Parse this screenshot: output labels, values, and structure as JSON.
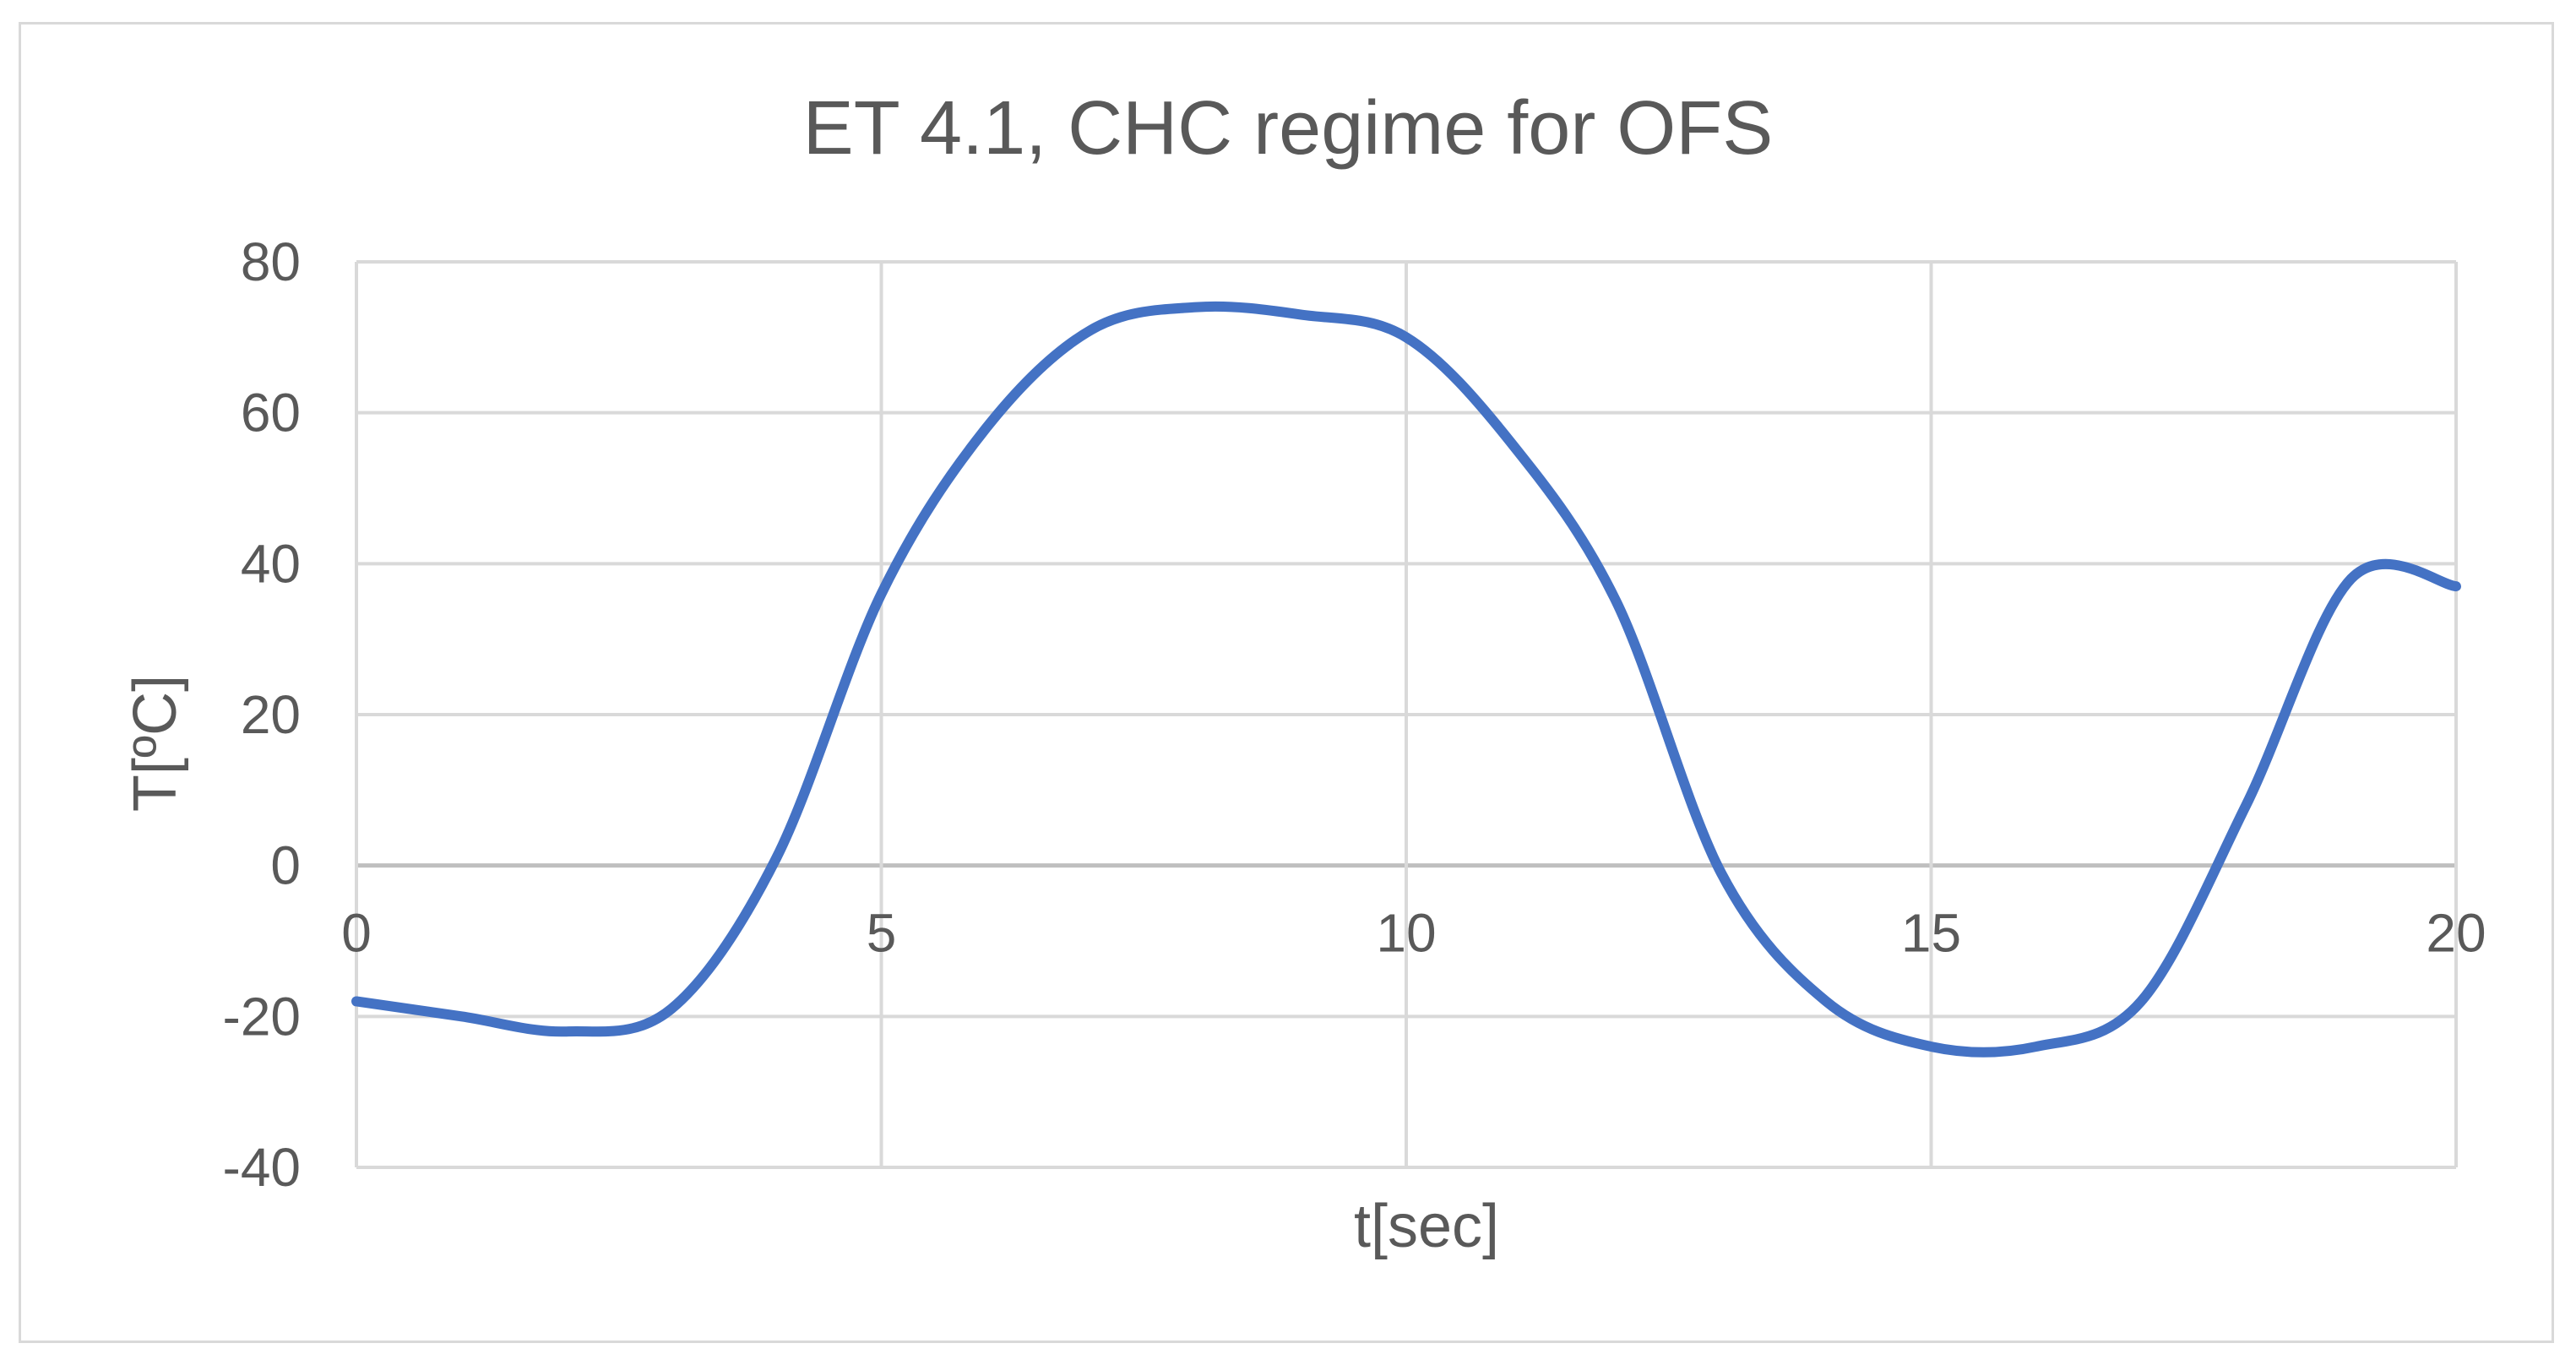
{
  "chart_data": {
    "type": "line",
    "title": "ET 4.1, CHC regime for OFS",
    "xlabel": "t[sec]",
    "ylabel": "T[ºC]",
    "xlim": [
      0,
      20
    ],
    "ylim": [
      -40,
      80
    ],
    "xticks": [
      0,
      5,
      10,
      15,
      20
    ],
    "yticks": [
      80,
      60,
      40,
      20,
      0,
      -20,
      -40
    ],
    "xtick_labels": [
      "0",
      "5",
      "10",
      "15",
      "20"
    ],
    "ytick_labels": [
      "80",
      "60",
      "40",
      "20",
      "0",
      "-20",
      "-40"
    ],
    "grid": true,
    "legend": "none",
    "series": [
      {
        "color": "#4472c4",
        "x": [
          0,
          1,
          2,
          3,
          4,
          5,
          6,
          7,
          8,
          9,
          10,
          11,
          12,
          13,
          14,
          15,
          16,
          17,
          18,
          19,
          20
        ],
        "y": [
          -18,
          -20,
          -22,
          -19,
          1,
          36,
          58,
          71,
          74,
          73,
          70,
          56,
          35,
          -1,
          -18,
          -24,
          -24,
          -18,
          8,
          38,
          37
        ]
      }
    ]
  }
}
